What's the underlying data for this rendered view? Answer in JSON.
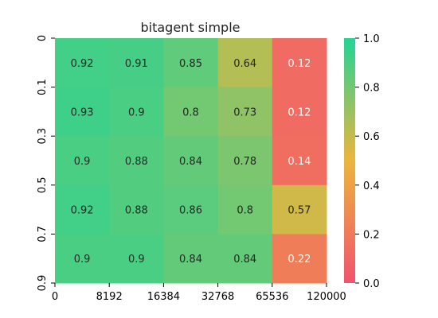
{
  "chart_data": {
    "type": "heatmap",
    "title": "bitagent simple",
    "x_tick_labels": [
      "0",
      "8192",
      "16384",
      "32768",
      "65536",
      "120000"
    ],
    "y_tick_labels": [
      "0",
      "0.1",
      "0.3",
      "0.5",
      "0.7",
      "0.9"
    ],
    "values": [
      [
        0.92,
        0.91,
        0.85,
        0.64,
        0.12
      ],
      [
        0.93,
        0.9,
        0.8,
        0.73,
        0.12
      ],
      [
        0.9,
        0.88,
        0.84,
        0.78,
        0.14
      ],
      [
        0.92,
        0.88,
        0.86,
        0.8,
        0.57
      ],
      [
        0.9,
        0.9,
        0.84,
        0.84,
        0.22
      ]
    ],
    "colorbar": {
      "range": [
        0.0,
        1.0
      ],
      "ticks": [
        "0.0",
        "0.2",
        "0.4",
        "0.6",
        "0.8",
        "1.0"
      ]
    },
    "colormap": {
      "low": "#f1536e",
      "mid": "#ecb53c",
      "high": "#22d496"
    }
  }
}
